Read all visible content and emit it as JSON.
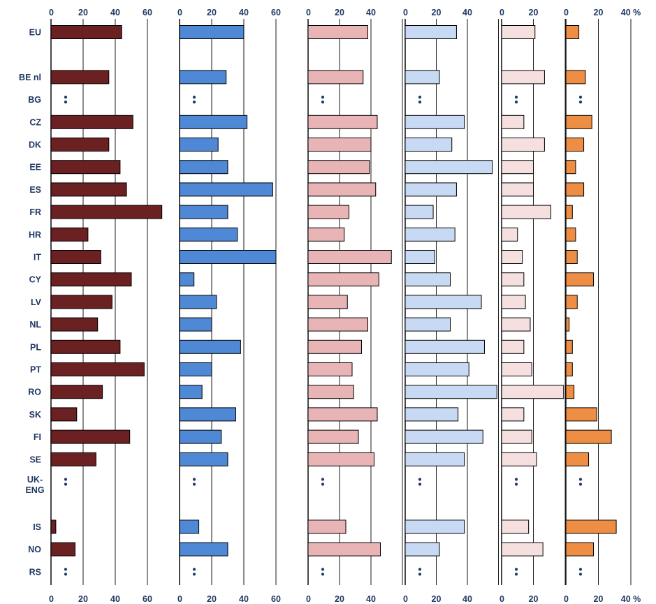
{
  "chart_data": {
    "type": "bar",
    "orientation": "horizontal",
    "grid": true,
    "countries": [
      "EU",
      "",
      "BE nl",
      "BG",
      "CZ",
      "DK",
      "EE",
      "ES",
      "FR",
      "HR",
      "IT",
      "CY",
      "LV",
      "NL",
      "PL",
      "PT",
      "RO",
      "SK",
      "FI",
      "SE",
      "UK-ENG",
      "",
      "IS",
      "NO",
      "RS"
    ],
    "panels": [
      {
        "color": "#6b2022",
        "xlim": [
          0,
          80
        ],
        "tick_labels": [
          "0",
          "20",
          "40",
          "60"
        ],
        "values": [
          44,
          null,
          36,
          null,
          51,
          36,
          43,
          47,
          69,
          23,
          31,
          50,
          38,
          29,
          43,
          58,
          32,
          16,
          49,
          28,
          null,
          null,
          3,
          15,
          null
        ]
      },
      {
        "color": "#4f88d4",
        "xlim": [
          0,
          60
        ],
        "tick_labels": [
          "0",
          "20",
          "40",
          "60"
        ],
        "values": [
          40,
          null,
          29,
          null,
          42,
          24,
          30,
          58,
          30,
          36,
          60,
          9,
          23,
          20,
          38,
          20,
          14,
          35,
          26,
          30,
          null,
          null,
          12,
          30,
          null
        ]
      },
      {
        "color": "#e8b4b6",
        "xlim": [
          0,
          60
        ],
        "tick_labels": [
          "0",
          "20",
          "40"
        ],
        "values": [
          38,
          null,
          35,
          null,
          44,
          40,
          39,
          43,
          26,
          23,
          53,
          45,
          25,
          38,
          34,
          28,
          29,
          44,
          32,
          42,
          null,
          null,
          24,
          46,
          null
        ]
      },
      {
        "color": "#c8daf3",
        "xlim": [
          0,
          60
        ],
        "tick_labels": [
          "0",
          "20",
          "40"
        ],
        "values": [
          33,
          null,
          22,
          null,
          38,
          30,
          56,
          33,
          18,
          32,
          19,
          29,
          49,
          29,
          51,
          41,
          59,
          34,
          50,
          38,
          null,
          null,
          38,
          22,
          null
        ]
      },
      {
        "color": "#f5dfdf",
        "xlim": [
          0,
          40
        ],
        "tick_labels": [
          "0",
          "20"
        ],
        "values": [
          21,
          null,
          27,
          null,
          14,
          27,
          20,
          20,
          31,
          10,
          13,
          14,
          15,
          18,
          14,
          19,
          39,
          14,
          19,
          22,
          null,
          null,
          17,
          26,
          null
        ]
      },
      {
        "color": "#ee8e44",
        "xlim": [
          0,
          40
        ],
        "tick_labels": [
          "0",
          "20",
          "40 %"
        ],
        "values": [
          8,
          null,
          12,
          null,
          16,
          11,
          6,
          11,
          4,
          6,
          7,
          17,
          7,
          2,
          4,
          4,
          5,
          19,
          28,
          14,
          null,
          null,
          31,
          17,
          null
        ]
      }
    ]
  }
}
